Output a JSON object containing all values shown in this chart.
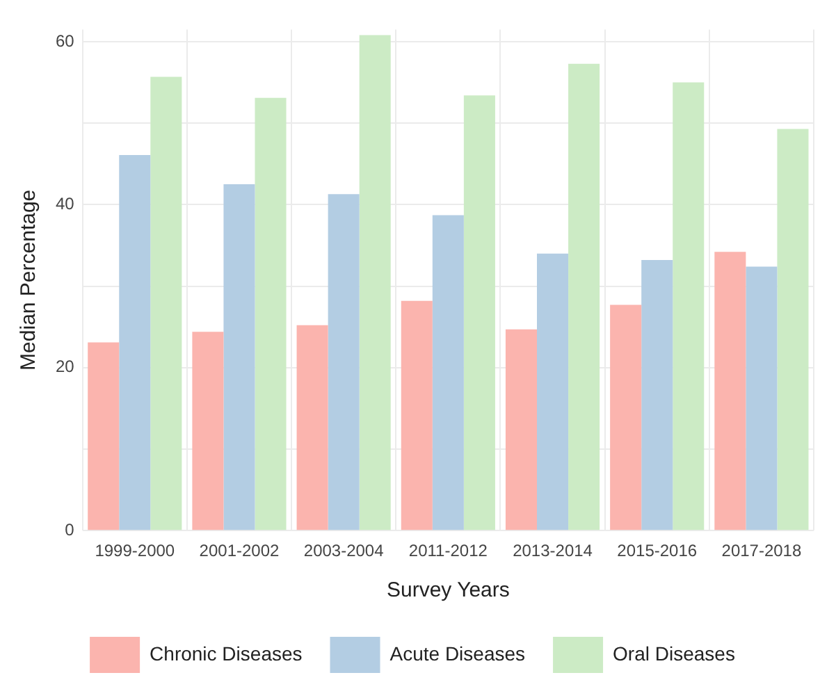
{
  "chart_data": {
    "type": "bar",
    "xlabel": "Survey Years",
    "ylabel": "Median Percentage",
    "categories": [
      "1999-2000",
      "2001-2002",
      "2003-2004",
      "2011-2012",
      "2013-2014",
      "2015-2016",
      "2017-2018"
    ],
    "series": [
      {
        "name": "Chronic Diseases",
        "color": "#fbb4ae",
        "values": [
          23.1,
          24.4,
          25.2,
          28.2,
          24.7,
          27.7,
          34.2
        ]
      },
      {
        "name": "Acute Diseases",
        "color": "#b3cde3",
        "values": [
          46.1,
          42.5,
          41.3,
          38.7,
          34.0,
          33.2,
          32.4
        ]
      },
      {
        "name": "Oral Diseases",
        "color": "#ccebc5",
        "values": [
          55.7,
          53.1,
          60.8,
          53.4,
          57.3,
          55.0,
          49.3
        ]
      }
    ],
    "ylim": [
      0,
      61.5
    ],
    "yticks": [
      0,
      {
        "value": 10,
        "label": null
      },
      20,
      {
        "value": 30,
        "label": null
      },
      40,
      {
        "value": 50,
        "label": null
      },
      60
    ],
    "grid": true,
    "legend": "bottom"
  }
}
